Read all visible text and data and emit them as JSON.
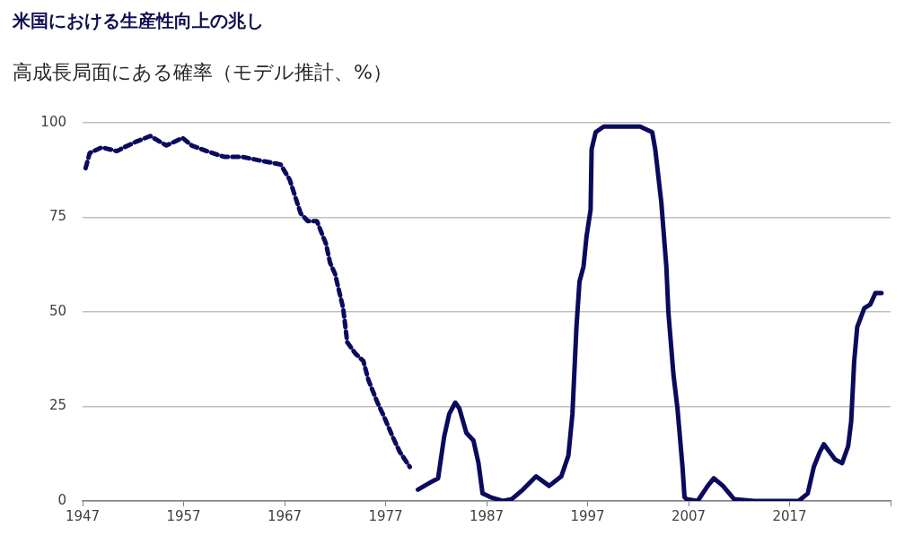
{
  "chart_data": {
    "type": "line",
    "title": "米国における生産性向上の兆し",
    "subtitle": "高成長局面にある確率（モデル推計、%）",
    "xlim": [
      1947,
      2027
    ],
    "xticks": [
      1947,
      1957,
      1967,
      1977,
      1987,
      1997,
      2007,
      2017,
      {
        "value": 2027,
        "label": null
      }
    ],
    "ylim": [
      0,
      100
    ],
    "yticks": [
      0,
      25,
      50,
      75,
      100
    ],
    "grid": "y",
    "legend": false,
    "marker": "none",
    "series": [
      {
        "color": "#0a0a5e",
        "line_style": "dashed",
        "x": [
          1947.3,
          1947.7,
          1948.9,
          1950.4,
          1951.1,
          1952.3,
          1953.7,
          1955.3,
          1956.9,
          1957.8,
          1959.3,
          1961,
          1962.8,
          1964.6,
          1966.6,
          1967.5,
          1968.6,
          1969.3,
          1970.2,
          1971.1,
          1971.5,
          1972,
          1972.8,
          1973.2,
          1974,
          1974.8,
          1975.3,
          1976.2,
          1976.9,
          1977.7,
          1978.4,
          1979.4
        ],
        "values": [
          88,
          92,
          93.5,
          92.5,
          93.5,
          95,
          96.5,
          94,
          96,
          94,
          92.5,
          91,
          91,
          90,
          89,
          85,
          76,
          74,
          74,
          68,
          63,
          60,
          51,
          42,
          39,
          37,
          32,
          26,
          22,
          17,
          13,
          9
        ]
      },
      {
        "color": "#0a0a5e",
        "line_style": "solid",
        "x": [
          1980.2,
          1981.5,
          1982.2,
          1982.8,
          1983.3,
          1983.9,
          1984.3,
          1985,
          1985.7,
          1986.2,
          1986.6,
          1987.4,
          1988.6,
          1989.5,
          1990.6,
          1991.9,
          1993.2,
          1994.4,
          1995.1,
          1995.5,
          1995.9,
          1996.2,
          1996.6,
          1996.9,
          1997.3,
          1997.4,
          1997.8,
          1998.6,
          2001.7,
          2002.2,
          2003.4,
          2003.7,
          2004.3,
          2004.8,
          2005,
          2005.5,
          2005.9,
          2006.4,
          2006.6,
          2006.8,
          2007.9,
          2008.9,
          2009.5,
          2010.4,
          2011.5,
          2013.5,
          2017.9,
          2018.8,
          2019.4,
          2020,
          2020.4,
          2021.5,
          2022.2,
          2022.8,
          2023.1,
          2023.4,
          2023.7,
          2024.4,
          2025,
          2025.5,
          2026.1
        ],
        "values": [
          3,
          5,
          6,
          17,
          23,
          26,
          24.5,
          18,
          16,
          10,
          2,
          1,
          0,
          0.5,
          3,
          6.5,
          4,
          6.5,
          12,
          23,
          46,
          58,
          62,
          70,
          77,
          93,
          97.5,
          99,
          99,
          99,
          97.5,
          93,
          79,
          62,
          50,
          33.5,
          24.5,
          9,
          1,
          0.5,
          0,
          4,
          6,
          4,
          0.5,
          0,
          0,
          2,
          9,
          13,
          15,
          11,
          10,
          14.5,
          21,
          37,
          46,
          51,
          52,
          55,
          55
        ]
      }
    ]
  }
}
